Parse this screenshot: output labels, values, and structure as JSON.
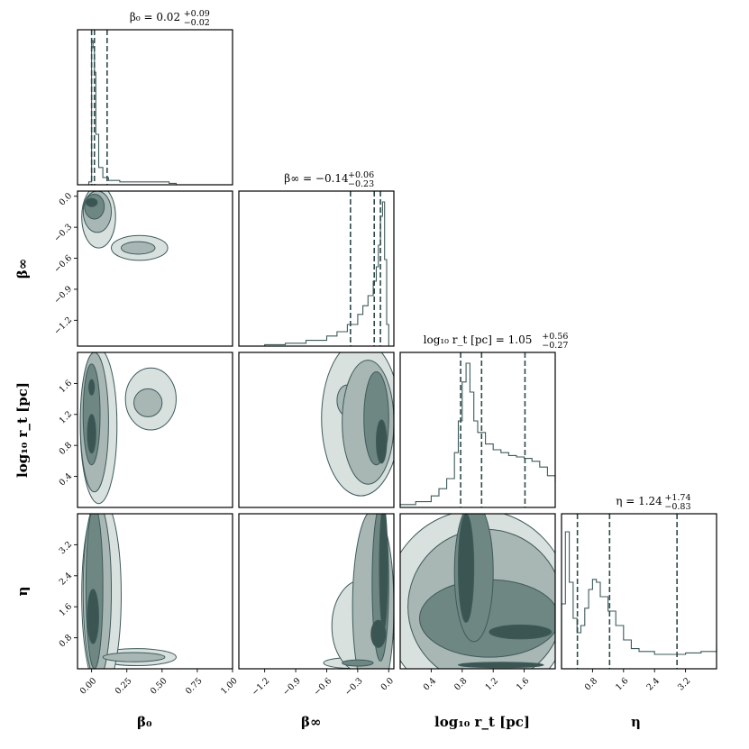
{
  "colors": {
    "contour_levels": [
      "#d9e1df",
      "#a8b7b4",
      "#6f8783",
      "#3b5553"
    ],
    "line": "#3d5a5a",
    "quantile": "#2f4a4a",
    "frame": "#000000"
  },
  "chart_data": {
    "type": "corner",
    "parameters": [
      {
        "key": "beta0",
        "label": "β₀",
        "title": "β₀ = 0.02 (+0.09, −0.02)",
        "title_main": "β₀ = 0.02",
        "title_sup": "+0.09",
        "title_sub": "−0.02",
        "range": [
          -0.1,
          1.0
        ],
        "ticks": [
          "0.00",
          "0.25",
          "0.50",
          "0.75",
          "1.00"
        ],
        "tick_values": [
          0.0,
          0.25,
          0.5,
          0.75,
          1.0
        ],
        "quantiles": [
          0.0,
          0.02,
          0.11
        ],
        "histogram": {
          "x": [
            -0.02,
            0.0,
            0.01,
            0.02,
            0.03,
            0.05,
            0.08,
            0.12,
            0.2,
            0.3,
            0.4,
            0.5,
            0.55,
            0.6
          ],
          "y": [
            0.02,
            1.0,
            0.95,
            0.78,
            0.35,
            0.12,
            0.05,
            0.03,
            0.02,
            0.02,
            0.02,
            0.02,
            0.01,
            0.0
          ]
        }
      },
      {
        "key": "beta_inf",
        "label": "β∞",
        "title": "β∞ = −0.14 (+0.06, −0.23)",
        "title_main": "β∞ = −0.14",
        "title_sup": "+0.06",
        "title_sub": "−0.23",
        "range": [
          -1.45,
          0.05
        ],
        "ticks": [
          "−1.2",
          "−0.9",
          "−0.6",
          "−0.3",
          "0.0"
        ],
        "tick_values": [
          -1.2,
          -0.9,
          -0.6,
          -0.3,
          0.0
        ],
        "quantiles": [
          -0.37,
          -0.14,
          -0.08
        ],
        "histogram": {
          "x": [
            -1.4,
            -1.2,
            -1.0,
            -0.8,
            -0.6,
            -0.5,
            -0.4,
            -0.3,
            -0.25,
            -0.2,
            -0.15,
            -0.12,
            -0.1,
            -0.08,
            -0.06,
            -0.04,
            -0.02,
            0.0
          ],
          "y": [
            0.0,
            0.01,
            0.02,
            0.04,
            0.07,
            0.1,
            0.15,
            0.22,
            0.28,
            0.35,
            0.45,
            0.55,
            0.7,
            0.9,
            1.0,
            0.6,
            0.15,
            0.0
          ]
        }
      },
      {
        "key": "log_rt",
        "label": "log₁₀ r_t [pc]",
        "title": "log₁₀ r_t [pc] = 1.05 (+0.56, −0.27)",
        "title_main": "log₁₀ r_t [pc] = 1.05",
        "title_sup": "+0.56",
        "title_sub": "−0.27",
        "range": [
          0.0,
          2.0
        ],
        "ticks": [
          "0.4",
          "0.8",
          "1.2",
          "1.6"
        ],
        "tick_values": [
          0.4,
          0.8,
          1.2,
          1.6
        ],
        "quantiles": [
          0.78,
          1.05,
          1.61
        ],
        "histogram": {
          "x": [
            0.0,
            0.2,
            0.4,
            0.5,
            0.6,
            0.7,
            0.75,
            0.8,
            0.85,
            0.9,
            0.95,
            1.0,
            1.1,
            1.2,
            1.3,
            1.4,
            1.5,
            1.6,
            1.7,
            1.8,
            1.9,
            2.0
          ],
          "y": [
            0.02,
            0.04,
            0.08,
            0.13,
            0.2,
            0.38,
            0.6,
            0.87,
            1.0,
            0.8,
            0.6,
            0.52,
            0.44,
            0.4,
            0.38,
            0.36,
            0.35,
            0.34,
            0.32,
            0.28,
            0.22,
            0.18
          ]
        }
      },
      {
        "key": "eta",
        "label": "η",
        "title": "η = 1.24 (+1.74, −0.83)",
        "title_main": "η = 1.24",
        "title_sup": "+1.74",
        "title_sub": "−0.83",
        "range": [
          0.0,
          4.0
        ],
        "ticks": [
          "0.8",
          "1.6",
          "2.4",
          "3.2"
        ],
        "tick_values": [
          0.8,
          1.6,
          2.4,
          3.2
        ],
        "quantiles": [
          0.41,
          1.24,
          2.98
        ],
        "histogram": {
          "x": [
            0.0,
            0.1,
            0.2,
            0.3,
            0.4,
            0.5,
            0.6,
            0.7,
            0.8,
            0.9,
            1.0,
            1.2,
            1.4,
            1.6,
            1.8,
            2.0,
            2.4,
            2.8,
            3.2,
            3.6,
            4.0
          ],
          "y": [
            0.45,
            0.95,
            0.6,
            0.35,
            0.25,
            0.3,
            0.42,
            0.55,
            0.62,
            0.6,
            0.5,
            0.4,
            0.3,
            0.2,
            0.14,
            0.12,
            0.1,
            0.1,
            0.11,
            0.12,
            0.15
          ]
        }
      }
    ],
    "contours": [
      {
        "row": 1,
        "col": 0,
        "regions": [
          {
            "cx": 0.0,
            "cy": -0.06,
            "rx": 0.04,
            "ry": 0.04,
            "level": 3
          },
          {
            "cx": 0.02,
            "cy": -0.1,
            "rx": 0.07,
            "ry": 0.12,
            "level": 2
          },
          {
            "cx": 0.04,
            "cy": -0.15,
            "rx": 0.1,
            "ry": 0.2,
            "level": 1
          },
          {
            "cx": 0.05,
            "cy": -0.2,
            "rx": 0.12,
            "ry": 0.3,
            "level": 0
          },
          {
            "cx": 0.33,
            "cy": -0.5,
            "rx": 0.12,
            "ry": 0.06,
            "level": 1
          },
          {
            "cx": 0.34,
            "cy": -0.5,
            "rx": 0.2,
            "ry": 0.12,
            "level": 0
          }
        ]
      },
      {
        "row": 2,
        "col": 0,
        "regions": [
          {
            "cx": 0.0,
            "cy": 0.95,
            "rx": 0.03,
            "ry": 0.25,
            "level": 3
          },
          {
            "cx": 0.0,
            "cy": 1.55,
            "rx": 0.02,
            "ry": 0.1,
            "level": 3
          },
          {
            "cx": 0.0,
            "cy": 1.2,
            "rx": 0.06,
            "ry": 0.65,
            "level": 2
          },
          {
            "cx": 0.02,
            "cy": 1.1,
            "rx": 0.1,
            "ry": 0.9,
            "level": 1
          },
          {
            "cx": 0.05,
            "cy": 1.05,
            "rx": 0.13,
            "ry": 1.0,
            "level": 0
          },
          {
            "cx": 0.4,
            "cy": 1.35,
            "rx": 0.1,
            "ry": 0.18,
            "level": 1
          },
          {
            "cx": 0.42,
            "cy": 1.4,
            "rx": 0.18,
            "ry": 0.4,
            "level": 0
          }
        ]
      },
      {
        "row": 2,
        "col": 1,
        "regions": [
          {
            "cx": -0.07,
            "cy": 0.85,
            "rx": 0.05,
            "ry": 0.28,
            "level": 3
          },
          {
            "cx": -0.12,
            "cy": 1.15,
            "rx": 0.12,
            "ry": 0.6,
            "level": 2
          },
          {
            "cx": -0.4,
            "cy": 1.38,
            "rx": 0.1,
            "ry": 0.2,
            "level": 1
          },
          {
            "cx": -0.2,
            "cy": 1.1,
            "rx": 0.25,
            "ry": 0.8,
            "level": 1
          },
          {
            "cx": -0.27,
            "cy": 1.15,
            "rx": 0.38,
            "ry": 1.0,
            "level": 0
          }
        ]
      },
      {
        "row": 3,
        "col": 0,
        "regions": [
          {
            "cx": 0.01,
            "cy": 1.35,
            "rx": 0.04,
            "ry": 0.7,
            "level": 3
          },
          {
            "cx": 0.02,
            "cy": 2.1,
            "rx": 0.06,
            "ry": 2.1,
            "level": 2
          },
          {
            "cx": 0.04,
            "cy": 2.0,
            "rx": 0.1,
            "ry": 2.3,
            "level": 1
          },
          {
            "cx": 0.3,
            "cy": 0.3,
            "rx": 0.22,
            "ry": 0.12,
            "level": 1
          },
          {
            "cx": 0.32,
            "cy": 0.3,
            "rx": 0.28,
            "ry": 0.22,
            "level": 0
          },
          {
            "cx": 0.07,
            "cy": 1.9,
            "rx": 0.14,
            "ry": 2.5,
            "level": 0
          }
        ]
      },
      {
        "row": 3,
        "col": 1,
        "regions": [
          {
            "cx": -0.05,
            "cy": 2.6,
            "rx": 0.04,
            "ry": 1.6,
            "level": 3
          },
          {
            "cx": -0.1,
            "cy": 0.9,
            "rx": 0.07,
            "ry": 0.35,
            "level": 3
          },
          {
            "cx": -0.08,
            "cy": 2.2,
            "rx": 0.08,
            "ry": 2.0,
            "level": 2
          },
          {
            "cx": -0.3,
            "cy": 0.15,
            "rx": 0.15,
            "ry": 0.08,
            "level": 2
          },
          {
            "cx": -0.15,
            "cy": 1.6,
            "rx": 0.2,
            "ry": 2.5,
            "level": 1
          },
          {
            "cx": -0.35,
            "cy": 0.15,
            "rx": 0.28,
            "ry": 0.14,
            "level": 0
          },
          {
            "cx": -0.25,
            "cy": 1.1,
            "rx": 0.3,
            "ry": 1.2,
            "level": 0
          }
        ]
      },
      {
        "row": 3,
        "col": 2,
        "regions": [
          {
            "cx": 0.85,
            "cy": 2.6,
            "rx": 0.1,
            "ry": 1.4,
            "level": 3
          },
          {
            "cx": 1.55,
            "cy": 0.95,
            "rx": 0.4,
            "ry": 0.18,
            "level": 3
          },
          {
            "cx": 1.3,
            "cy": 0.1,
            "rx": 0.55,
            "ry": 0.07,
            "level": 3
          },
          {
            "cx": 1.15,
            "cy": 1.3,
            "rx": 0.9,
            "ry": 1.0,
            "level": 2
          },
          {
            "cx": 0.95,
            "cy": 2.5,
            "rx": 0.25,
            "ry": 1.8,
            "level": 2
          },
          {
            "cx": 1.1,
            "cy": 1.6,
            "rx": 1.0,
            "ry": 2.0,
            "level": 1
          },
          {
            "cx": 1.0,
            "cy": 1.6,
            "rx": 1.2,
            "ry": 2.5,
            "level": 0
          }
        ]
      }
    ]
  }
}
